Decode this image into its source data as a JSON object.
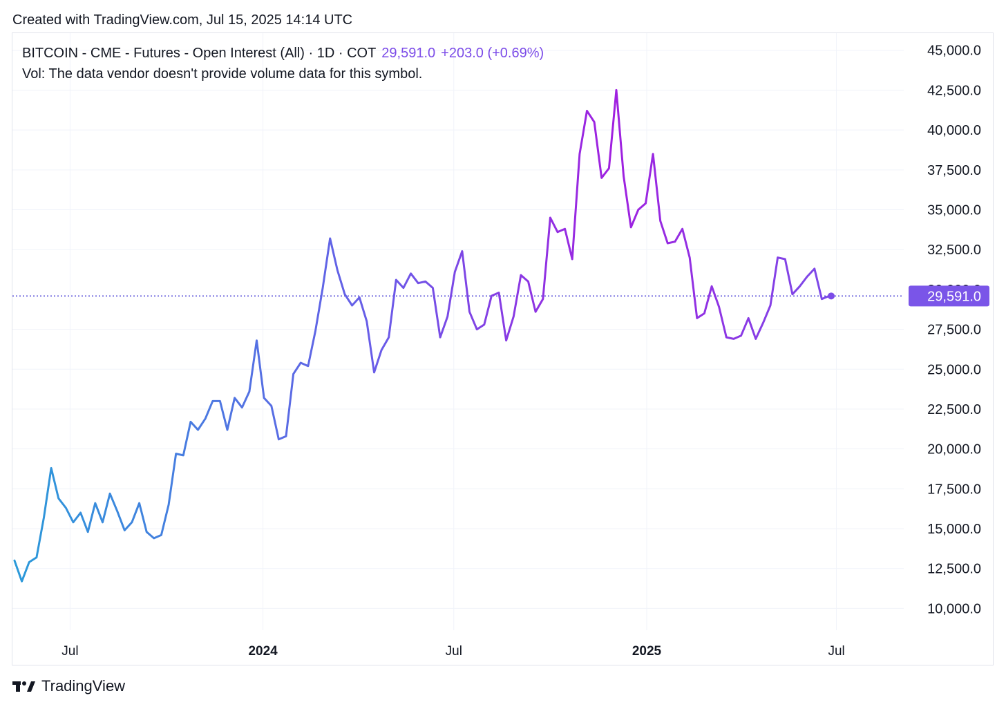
{
  "header": {
    "created_text": "Created with TradingView.com, Jul 15, 2025 14:14 UTC"
  },
  "legend": {
    "symbol_text": "BITCOIN - CME - Futures - Open Interest (All) · 1D · COT",
    "last_value": "29,591.0",
    "change": "+203.0 (+0.69%)",
    "vol_text": "Vol: The data vendor doesn't provide volume data for this symbol."
  },
  "footer": {
    "brand": "TradingView"
  },
  "colors": {
    "line_start": "#2a9ad9",
    "line_mid": "#6a5be8",
    "line_peak": "#a020e0",
    "label_bg": "#7a55e8",
    "dotted": "#3a2fd0"
  },
  "chart_data": {
    "type": "line",
    "title": "",
    "xlabel": "",
    "ylabel": "",
    "ylim": [
      7500,
      45000
    ],
    "y_ticks": [
      10000,
      12500,
      15000,
      17500,
      20000,
      22500,
      25000,
      27500,
      32500,
      35000,
      37500,
      40000,
      42500,
      45000
    ],
    "y_tick_labels": [
      "10,000.0",
      "12,500.0",
      "15,000.0",
      "17,500.0",
      "20,000.0",
      "22,500.0",
      "25,000.0",
      "27,500.0",
      "32,500.0",
      "35,000.0",
      "37,500.0",
      "40,000.0",
      "42,500.0",
      "45,000.0"
    ],
    "x_ticks": [
      {
        "label": "Jul",
        "date": "2023-07-01",
        "bold": false
      },
      {
        "label": "2024",
        "date": "2024-01-01",
        "bold": true
      },
      {
        "label": "Jul",
        "date": "2024-07-01",
        "bold": false
      },
      {
        "label": "2025",
        "date": "2025-01-01",
        "bold": true
      },
      {
        "label": "Jul",
        "date": "2025-07-01",
        "bold": false
      }
    ],
    "last_value_label": "29,591.0",
    "last_value": 29591,
    "grid": true,
    "series": [
      {
        "values": [
          [
            "2023-05-09",
            13000
          ],
          [
            "2023-05-16",
            11700
          ],
          [
            "2023-05-23",
            12900
          ],
          [
            "2023-05-30",
            13200
          ],
          [
            "2023-06-06",
            15700
          ],
          [
            "2023-06-13",
            18800
          ],
          [
            "2023-06-20",
            16900
          ],
          [
            "2023-06-27",
            16300
          ],
          [
            "2023-07-04",
            15400
          ],
          [
            "2023-07-11",
            16000
          ],
          [
            "2023-07-18",
            14800
          ],
          [
            "2023-07-25",
            16600
          ],
          [
            "2023-08-01",
            15400
          ],
          [
            "2023-08-08",
            17200
          ],
          [
            "2023-08-15",
            16100
          ],
          [
            "2023-08-22",
            14900
          ],
          [
            "2023-08-29",
            15400
          ],
          [
            "2023-09-05",
            16600
          ],
          [
            "2023-09-12",
            14800
          ],
          [
            "2023-09-19",
            14400
          ],
          [
            "2023-09-26",
            14600
          ],
          [
            "2023-10-03",
            16500
          ],
          [
            "2023-10-10",
            19700
          ],
          [
            "2023-10-17",
            19600
          ],
          [
            "2023-10-24",
            21700
          ],
          [
            "2023-10-31",
            21200
          ],
          [
            "2023-11-07",
            21900
          ],
          [
            "2023-11-14",
            23000
          ],
          [
            "2023-11-21",
            23000
          ],
          [
            "2023-11-28",
            21200
          ],
          [
            "2023-12-05",
            23200
          ],
          [
            "2023-12-12",
            22600
          ],
          [
            "2023-12-19",
            23600
          ],
          [
            "2023-12-26",
            26800
          ],
          [
            "2024-01-02",
            23200
          ],
          [
            "2024-01-09",
            22700
          ],
          [
            "2024-01-16",
            20600
          ],
          [
            "2024-01-23",
            20800
          ],
          [
            "2024-01-30",
            24700
          ],
          [
            "2024-02-06",
            25400
          ],
          [
            "2024-02-13",
            25200
          ],
          [
            "2024-02-20",
            27400
          ],
          [
            "2024-02-27",
            30100
          ],
          [
            "2024-03-05",
            33200
          ],
          [
            "2024-03-12",
            31200
          ],
          [
            "2024-03-19",
            29700
          ],
          [
            "2024-03-26",
            29000
          ],
          [
            "2024-04-02",
            29500
          ],
          [
            "2024-04-09",
            28000
          ],
          [
            "2024-04-16",
            24800
          ],
          [
            "2024-04-23",
            26200
          ],
          [
            "2024-04-30",
            27000
          ],
          [
            "2024-05-07",
            30600
          ],
          [
            "2024-05-14",
            30100
          ],
          [
            "2024-05-21",
            31000
          ],
          [
            "2024-05-28",
            30400
          ],
          [
            "2024-06-04",
            30500
          ],
          [
            "2024-06-11",
            30100
          ],
          [
            "2024-06-18",
            27000
          ],
          [
            "2024-06-25",
            28300
          ],
          [
            "2024-07-02",
            31100
          ],
          [
            "2024-07-09",
            32400
          ],
          [
            "2024-07-16",
            28600
          ],
          [
            "2024-07-23",
            27500
          ],
          [
            "2024-07-30",
            27800
          ],
          [
            "2024-08-06",
            29600
          ],
          [
            "2024-08-13",
            29800
          ],
          [
            "2024-08-20",
            26800
          ],
          [
            "2024-08-27",
            28300
          ],
          [
            "2024-09-03",
            30900
          ],
          [
            "2024-09-10",
            30500
          ],
          [
            "2024-09-17",
            28600
          ],
          [
            "2024-09-24",
            29400
          ],
          [
            "2024-10-01",
            34500
          ],
          [
            "2024-10-08",
            33600
          ],
          [
            "2024-10-15",
            33800
          ],
          [
            "2024-10-22",
            31900
          ],
          [
            "2024-10-29",
            38500
          ],
          [
            "2024-11-05",
            41200
          ],
          [
            "2024-11-12",
            40500
          ],
          [
            "2024-11-19",
            37000
          ],
          [
            "2024-11-26",
            37600
          ],
          [
            "2024-12-03",
            42500
          ],
          [
            "2024-12-10",
            37100
          ],
          [
            "2024-12-17",
            33900
          ],
          [
            "2024-12-24",
            35000
          ],
          [
            "2024-12-31",
            35400
          ],
          [
            "2025-01-07",
            38500
          ],
          [
            "2025-01-14",
            34300
          ],
          [
            "2025-01-21",
            32900
          ],
          [
            "2025-01-28",
            33000
          ],
          [
            "2025-02-04",
            33800
          ],
          [
            "2025-02-11",
            32000
          ],
          [
            "2025-02-18",
            28200
          ],
          [
            "2025-02-25",
            28500
          ],
          [
            "2025-03-04",
            30200
          ],
          [
            "2025-03-11",
            28900
          ],
          [
            "2025-03-18",
            27000
          ],
          [
            "2025-03-25",
            26900
          ],
          [
            "2025-04-01",
            27100
          ],
          [
            "2025-04-08",
            28200
          ],
          [
            "2025-04-15",
            26900
          ],
          [
            "2025-04-22",
            27900
          ],
          [
            "2025-04-29",
            29000
          ],
          [
            "2025-05-06",
            32000
          ],
          [
            "2025-05-13",
            31900
          ],
          [
            "2025-05-20",
            29700
          ],
          [
            "2025-05-27",
            30200
          ],
          [
            "2025-06-03",
            30800
          ],
          [
            "2025-06-10",
            31300
          ],
          [
            "2025-06-17",
            29400
          ],
          [
            "2025-06-24",
            29591
          ]
        ]
      }
    ]
  }
}
